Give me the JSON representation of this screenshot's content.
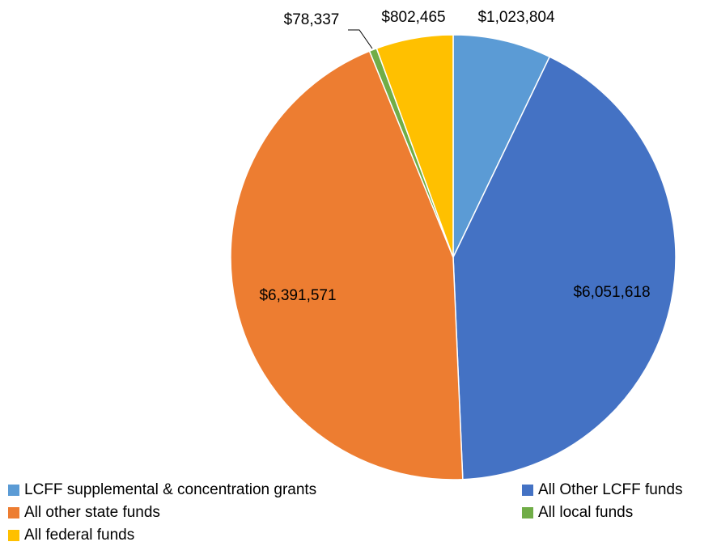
{
  "chart_data": {
    "type": "pie",
    "title": "",
    "slices": [
      {
        "name": "LCFF supplemental & concentration grants",
        "value": 1023804,
        "label": "$1,023,804",
        "color": "#5B9BD5"
      },
      {
        "name": "All Other LCFF funds",
        "value": 6051618,
        "label": "$6,051,618",
        "color": "#4472C4"
      },
      {
        "name": "All other state funds",
        "value": 6391571,
        "label": "$6,391,571",
        "color": "#ED7D31"
      },
      {
        "name": "All local funds",
        "value": 78337,
        "label": "$78,337",
        "color": "#70AD47"
      },
      {
        "name": "All federal funds",
        "value": 802465,
        "label": "$802,465",
        "color": "#FFC000"
      }
    ],
    "legend_position": "bottom"
  }
}
